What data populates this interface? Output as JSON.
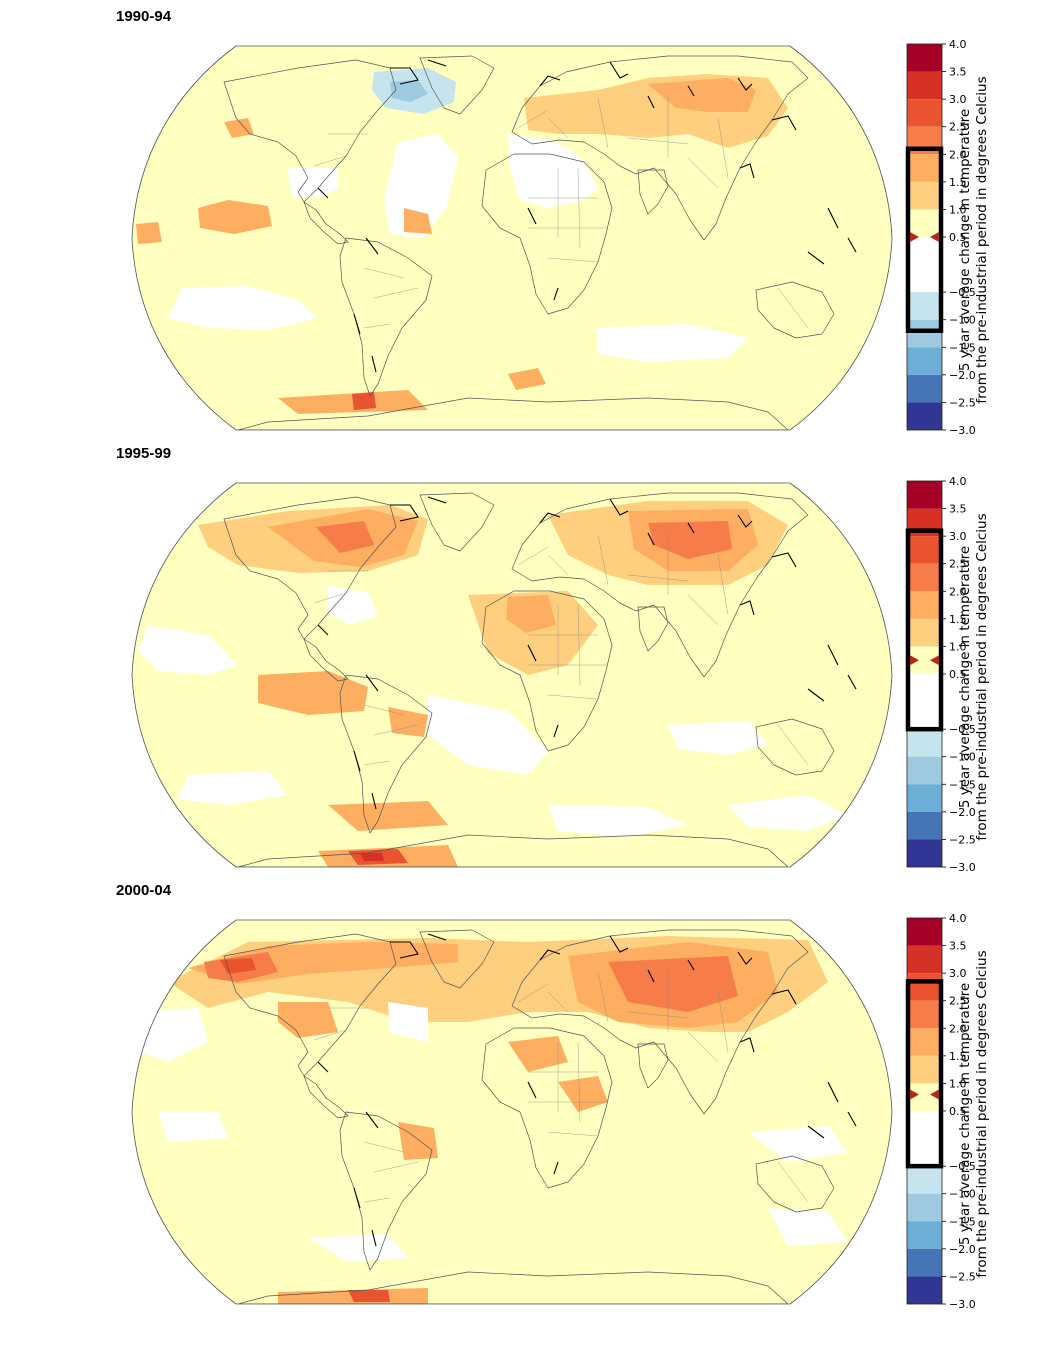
{
  "colorbar": {
    "label_line1": "5 year average change in temperature",
    "label_line2": "from the pre-industrial period in degrees Celcius",
    "ticks": [
      "4.0",
      "3.5",
      "3.0",
      "2.5",
      "2.0",
      "1.5",
      "1.0",
      "0.5",
      "−0.5",
      "−1.0",
      "−1.5",
      "−2.0",
      "−2.5",
      "−3.0"
    ],
    "tick_values": [
      4.0,
      3.5,
      3.0,
      2.5,
      2.0,
      1.5,
      1.0,
      0.5,
      -0.5,
      -1.0,
      -1.5,
      -2.0,
      -2.5,
      -3.0
    ],
    "min": -3.0,
    "max": 4.0,
    "bins": [
      {
        "from": 3.5,
        "to": 4.0,
        "color": "#a50026"
      },
      {
        "from": 3.0,
        "to": 3.5,
        "color": "#d73027"
      },
      {
        "from": 2.5,
        "to": 3.0,
        "color": "#e9532f"
      },
      {
        "from": 2.0,
        "to": 2.5,
        "color": "#f67c4a"
      },
      {
        "from": 1.5,
        "to": 2.0,
        "color": "#fdae61"
      },
      {
        "from": 1.0,
        "to": 1.5,
        "color": "#fecf7f"
      },
      {
        "from": 0.5,
        "to": 1.0,
        "color": "#ffffbf"
      },
      {
        "from": -0.5,
        "to": 0.5,
        "color": "#ffffff"
      },
      {
        "from": -1.0,
        "to": -0.5,
        "color": "#c6e4ee"
      },
      {
        "from": -1.5,
        "to": -1.0,
        "color": "#9ecae1"
      },
      {
        "from": -2.0,
        "to": -1.5,
        "color": "#6baed6"
      },
      {
        "from": -2.5,
        "to": -2.0,
        "color": "#4575b4"
      },
      {
        "from": -3.0,
        "to": -2.5,
        "color": "#313695"
      }
    ]
  },
  "panels": [
    {
      "title": "1990-94",
      "range_min": -1.2,
      "range_max": 2.1,
      "mean": 0.5,
      "negative_region": true
    },
    {
      "title": "1995-99",
      "range_min": -0.5,
      "range_max": 3.1,
      "mean": 0.75,
      "negative_region": false
    },
    {
      "title": "2000-04",
      "range_min": -0.5,
      "range_max": 2.85,
      "mean": 0.8,
      "negative_region": false
    }
  ]
}
